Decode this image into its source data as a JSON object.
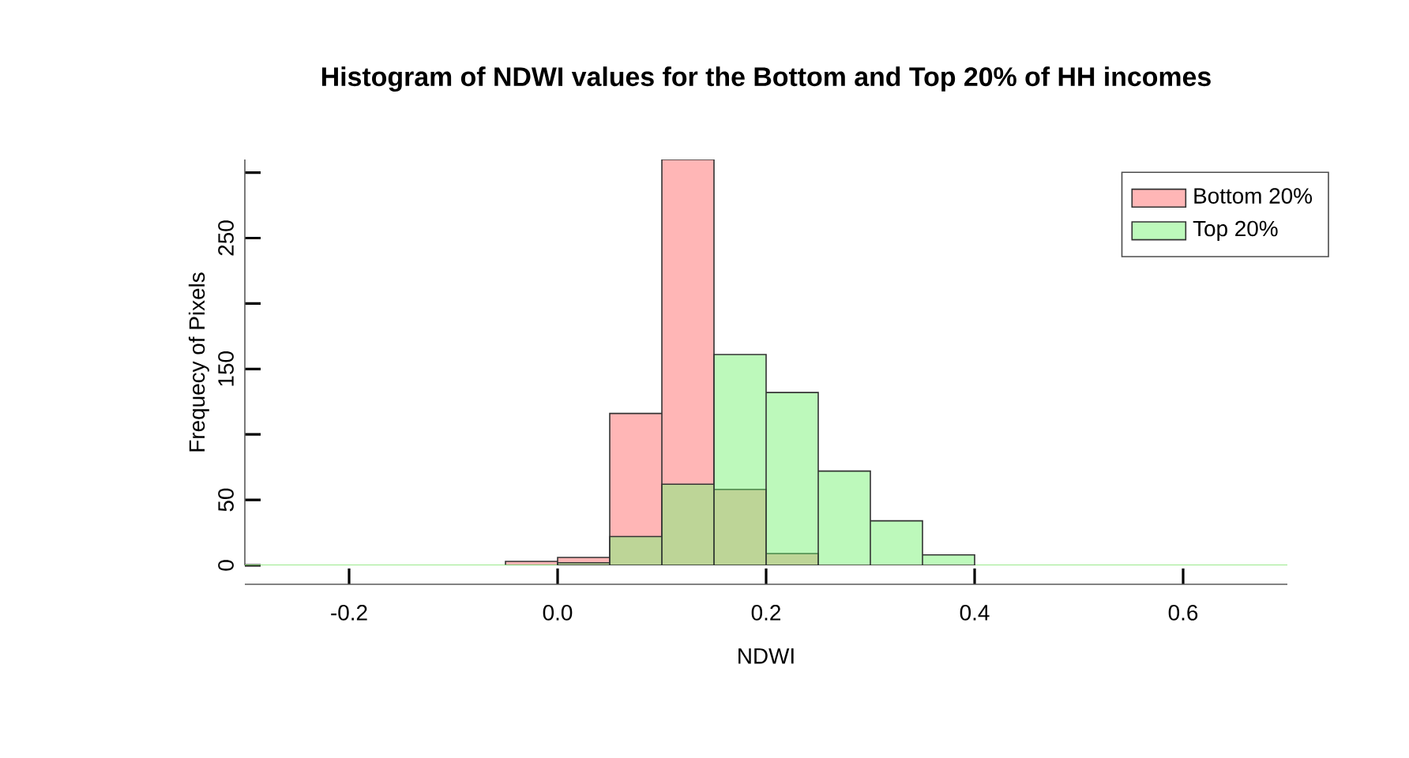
{
  "chart_data": {
    "type": "histogram",
    "title": "Histogram of NDWI values for the Bottom and Top 20% of HH incomes",
    "xlabel": "NDWI",
    "ylabel": "Frequecy of Pixels",
    "bins": [
      -0.3,
      -0.25,
      -0.2,
      -0.15,
      -0.1,
      -0.05,
      0.0,
      0.05,
      0.1,
      0.15,
      0.2,
      0.25,
      0.3,
      0.35,
      0.4,
      0.45,
      0.5,
      0.55,
      0.6,
      0.65,
      0.7
    ],
    "series": [
      {
        "name": "Bottom 20%",
        "color": "#ffb6b6",
        "values": [
          0,
          0,
          0,
          0,
          0,
          3,
          6,
          116,
          310,
          58,
          9,
          0,
          0,
          0,
          0,
          0,
          0,
          0,
          0,
          0
        ]
      },
      {
        "name": "Top 20%",
        "color": "#bdf9bb",
        "values": [
          0,
          0,
          0,
          0,
          0,
          0,
          2,
          22,
          62,
          161,
          132,
          72,
          34,
          8,
          0,
          0,
          0,
          0,
          0,
          0
        ]
      }
    ],
    "xlim": [
      -0.3,
      0.7
    ],
    "ylim": [
      0,
      310
    ],
    "xticks": [
      -0.2,
      {
        "value": 0,
        "label": "0.0"
      },
      0.2,
      0.4,
      0.6
    ],
    "yticks": [
      0,
      50,
      {
        "value": 100,
        "label": null
      },
      150,
      {
        "value": 200,
        "label": null
      },
      250,
      {
        "value": 300,
        "label": null
      }
    ],
    "legend": "top right",
    "grid": false
  }
}
